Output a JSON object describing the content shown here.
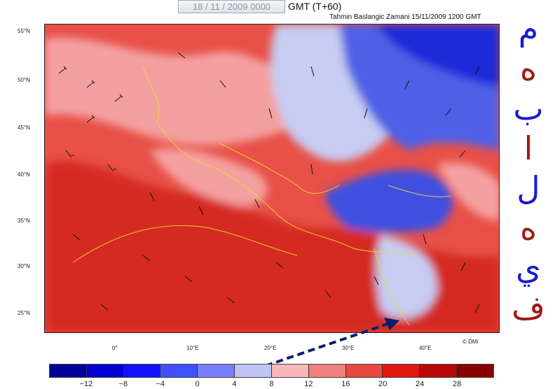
{
  "header": {
    "valid_date": "18 / 11 / 2009 0000",
    "valid_suffix": "GMT (T+60)",
    "init_time": "Tahmin Baslangic Zamani  15/11/2009 1200 GMT"
  },
  "map": {
    "lat_labels": [
      "55°N",
      "50°N",
      "45°N",
      "40°N",
      "35°N",
      "30°N",
      "25°N"
    ],
    "lon_labels": [
      "0°",
      "10°E",
      "20°E",
      "30°E",
      "40°E"
    ],
    "copyright": "© DMi",
    "field_colors": {
      "warm_deep": "#d42a20",
      "warm": "#e85048",
      "warm_light": "#f4a0a0",
      "cool_light": "#c6ccf2",
      "cool": "#5060e6",
      "cool_deep": "#1a2ad8"
    }
  },
  "colorbar": {
    "colors": [
      "#00009a",
      "#0000d2",
      "#1010ff",
      "#4050ff",
      "#7880ff",
      "#c0c4f4",
      "#f8b8b8",
      "#f08080",
      "#e84840",
      "#e01810",
      "#b80808",
      "#8a0000"
    ],
    "labels": [
      "−12",
      "−8",
      "−4",
      "0",
      "4",
      "8",
      "12",
      "16",
      "20",
      "24",
      "28"
    ]
  },
  "arabic_letters": [
    {
      "char": "م",
      "color": "#1a1acc"
    },
    {
      "char": "ه",
      "color": "#a01818"
    },
    {
      "char": "ب",
      "color": "#1a1acc"
    },
    {
      "char": "ا",
      "color": "#a01818"
    },
    {
      "char": "ل",
      "color": "#1a1acc"
    },
    {
      "char": "ه",
      "color": "#a01818"
    },
    {
      "char": "ي",
      "color": "#1a1acc"
    },
    {
      "char": "ف",
      "color": "#a01818"
    }
  ]
}
